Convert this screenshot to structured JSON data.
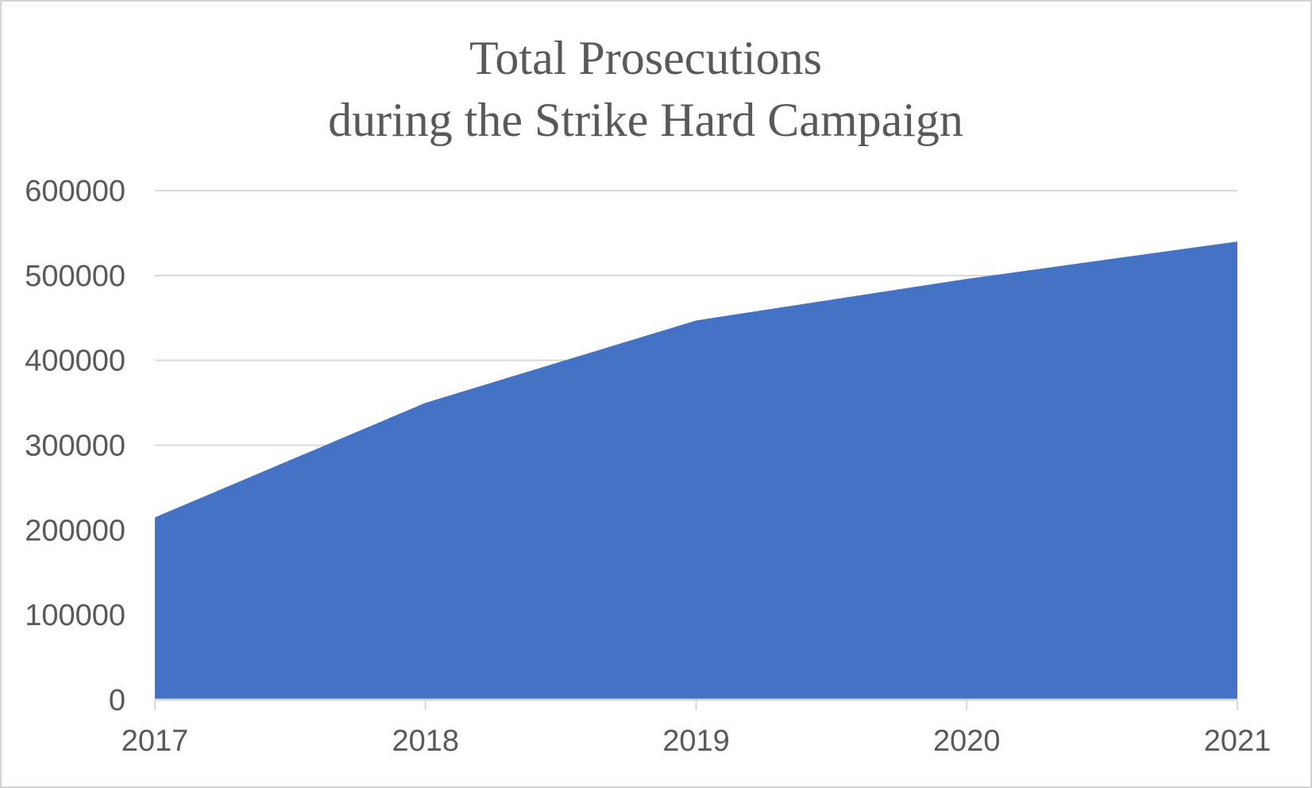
{
  "chart": {
    "title_line1": "Total Prosecutions",
    "title_line2": "during the Strike Hard Campaign"
  },
  "chart_data": {
    "type": "area",
    "title": "Total Prosecutions during the Strike Hard Campaign",
    "categories": [
      "2017",
      "2018",
      "2019",
      "2020",
      "2021"
    ],
    "values": [
      215000,
      350000,
      447000,
      496000,
      540000
    ],
    "xlabel": "",
    "ylabel": "",
    "ylim": [
      0,
      600000
    ],
    "yticks": [
      0,
      100000,
      200000,
      300000,
      400000,
      500000,
      600000
    ],
    "grid": true,
    "legend": false,
    "colors": {
      "area_fill": "#4472C4",
      "gridline": "#D9D9D9",
      "axis_line": "#D9D9D9",
      "tick_label": "#595959",
      "title": "#595959",
      "background": "#FFFFFF",
      "border": "#D4D4D4"
    }
  }
}
